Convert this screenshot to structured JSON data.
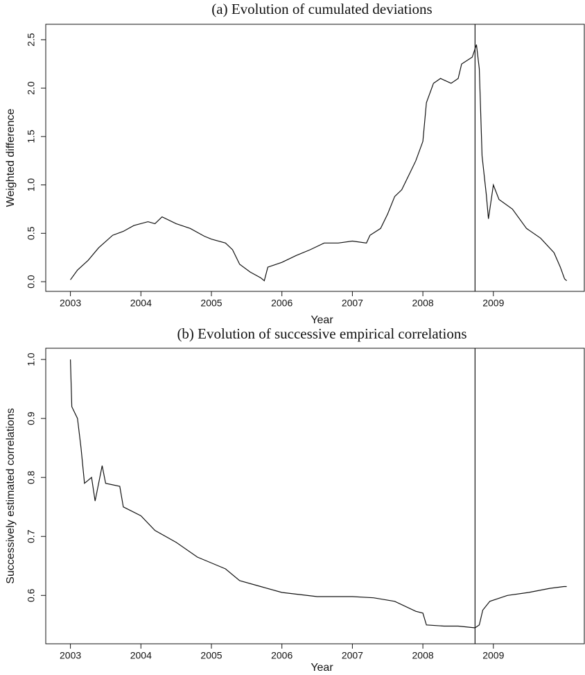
{
  "chart_data": [
    {
      "type": "line",
      "title": "(a) Evolution of cumulated deviations",
      "xlabel": "Year",
      "ylabel": "Weighted difference",
      "color": "#111111",
      "x": [
        2003.0,
        2003.1,
        2003.25,
        2003.4,
        2003.6,
        2003.75,
        2003.9,
        2004.1,
        2004.2,
        2004.3,
        2004.5,
        2004.7,
        2004.9,
        2005.0,
        2005.2,
        2005.3,
        2005.4,
        2005.55,
        2005.7,
        2005.75,
        2005.8,
        2006.0,
        2006.2,
        2006.4,
        2006.6,
        2006.8,
        2007.0,
        2007.2,
        2007.25,
        2007.4,
        2007.5,
        2007.6,
        2007.7,
        2007.8,
        2007.9,
        2008.0,
        2008.05,
        2008.15,
        2008.25,
        2008.4,
        2008.5,
        2008.55,
        2008.7,
        2008.76,
        2008.8,
        2008.84,
        2008.9,
        2008.93,
        2009.0,
        2009.08,
        2009.27,
        2009.47,
        2009.67,
        2009.86,
        2009.95,
        2010.01,
        2010.04
      ],
      "values": [
        0.02,
        0.12,
        0.22,
        0.35,
        0.48,
        0.52,
        0.58,
        0.62,
        0.6,
        0.67,
        0.6,
        0.55,
        0.47,
        0.44,
        0.4,
        0.33,
        0.18,
        0.1,
        0.04,
        0.01,
        0.15,
        0.2,
        0.27,
        0.33,
        0.4,
        0.4,
        0.42,
        0.4,
        0.48,
        0.55,
        0.7,
        0.88,
        0.95,
        1.1,
        1.25,
        1.45,
        1.85,
        2.05,
        2.1,
        2.05,
        2.1,
        2.25,
        2.32,
        2.45,
        2.2,
        1.3,
        0.9,
        0.65,
        1.0,
        0.85,
        0.75,
        0.55,
        0.45,
        0.3,
        0.15,
        0.03,
        0.01
      ],
      "vline": 2008.74,
      "xlim": [
        2002.65,
        2010.29
      ],
      "ylim": [
        -0.1,
        2.66
      ],
      "xticks": [
        2003,
        2004,
        2005,
        2006,
        2007,
        2008,
        2009
      ],
      "yticks": [
        {
          "value": 0,
          "label": "0.0"
        },
        0.5,
        {
          "value": 1,
          "label": "1.0"
        },
        1.5,
        {
          "value": 2,
          "label": "2.0"
        },
        2.5
      ]
    },
    {
      "type": "line",
      "title": "(b) Evolution of successive empirical correlations",
      "xlabel": "Year",
      "ylabel": "Successively estimated correlations",
      "color": "#111111",
      "x": [
        2003.0,
        2003.02,
        2003.1,
        2003.15,
        2003.2,
        2003.3,
        2003.35,
        2003.45,
        2003.5,
        2003.7,
        2003.75,
        2004.0,
        2004.2,
        2004.5,
        2004.8,
        2005.0,
        2005.2,
        2005.4,
        2005.7,
        2006.0,
        2006.5,
        2007.0,
        2007.3,
        2007.6,
        2007.9,
        2008.0,
        2008.05,
        2008.3,
        2008.5,
        2008.74,
        2008.8,
        2008.85,
        2008.95,
        2009.2,
        2009.5,
        2009.8,
        2010.0,
        2010.04
      ],
      "values": [
        1.0,
        0.92,
        0.9,
        0.85,
        0.79,
        0.8,
        0.76,
        0.82,
        0.79,
        0.785,
        0.75,
        0.735,
        0.71,
        0.69,
        0.665,
        0.655,
        0.645,
        0.625,
        0.615,
        0.605,
        0.598,
        0.598,
        0.596,
        0.59,
        0.573,
        0.57,
        0.55,
        0.548,
        0.548,
        0.545,
        0.55,
        0.575,
        0.59,
        0.6,
        0.605,
        0.612,
        0.615,
        0.615
      ],
      "vline": 2008.74,
      "xlim": [
        2002.65,
        2010.29
      ],
      "ylim": [
        0.518,
        1.019
      ],
      "xticks": [
        2003,
        2004,
        2005,
        2006,
        2007,
        2008,
        2009
      ],
      "yticks": [
        0.6,
        0.7,
        0.8,
        0.9,
        {
          "value": 1,
          "label": "1.0"
        }
      ]
    }
  ]
}
